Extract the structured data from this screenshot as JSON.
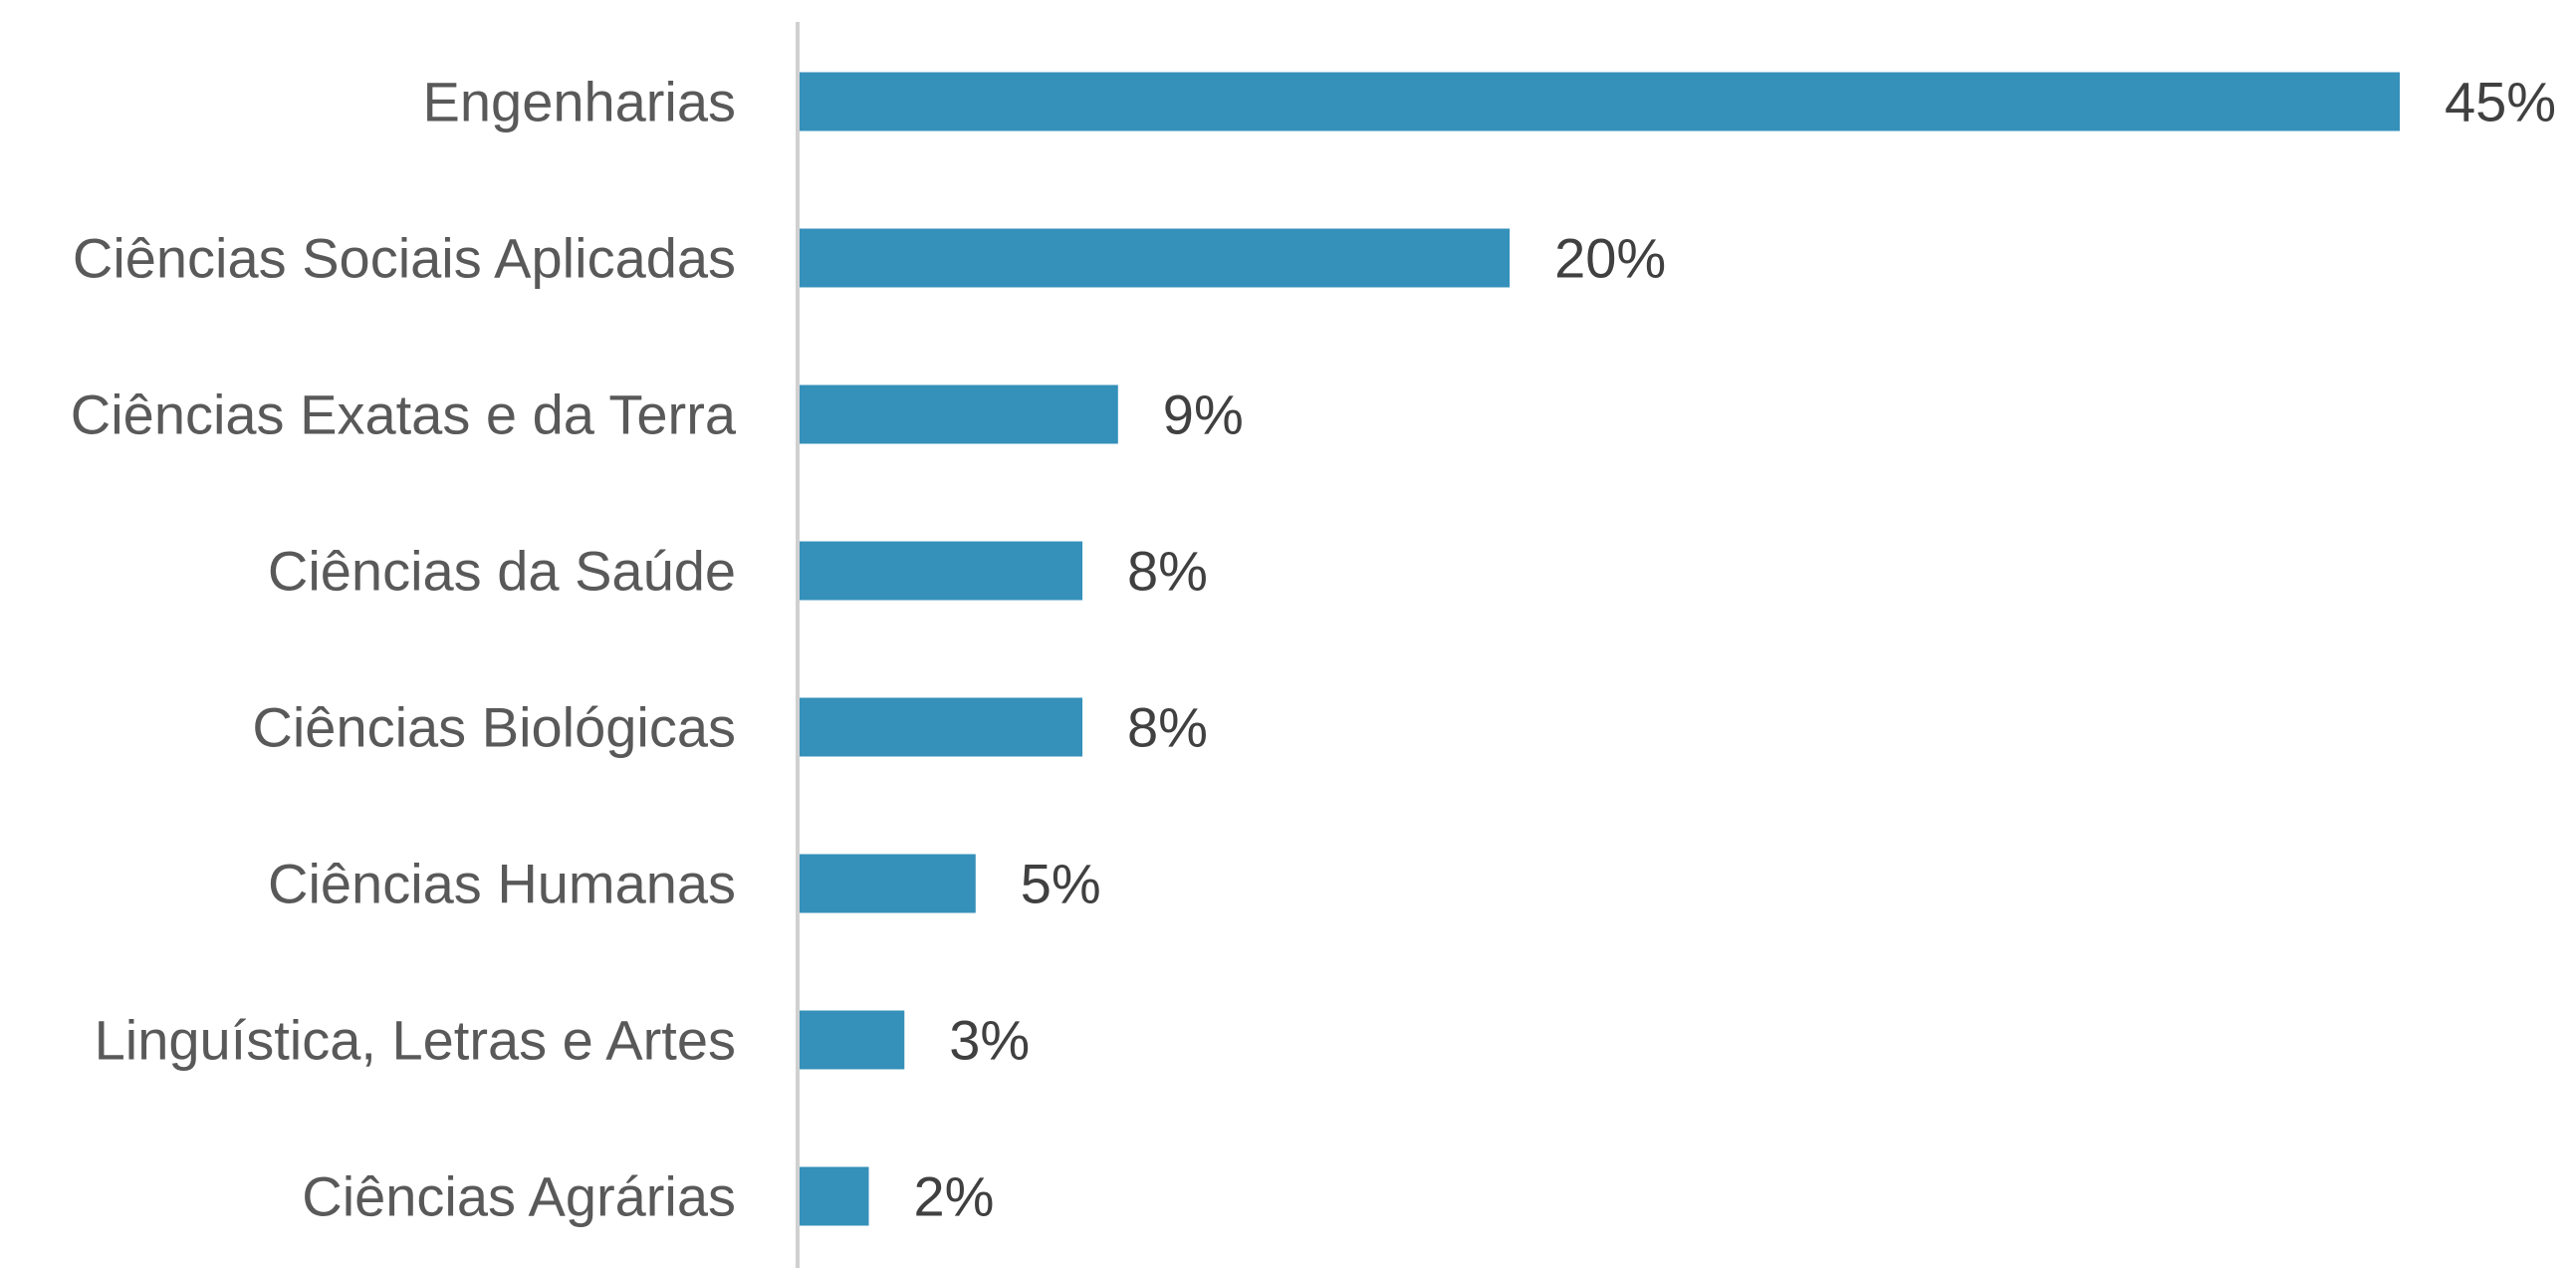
{
  "chart_data": {
    "type": "bar",
    "orientation": "horizontal",
    "categories": [
      "Engenharias",
      "Ciências Sociais Aplicadas",
      "Ciências Exatas e da Terra",
      "Ciências da Saúde",
      "Ciências Biológicas",
      "Ciências Humanas",
      "Linguística, Letras e Artes",
      "Ciências Agrárias"
    ],
    "values": [
      45,
      20,
      9,
      8,
      8,
      5,
      3,
      2
    ],
    "data_labels": [
      "45%",
      "20%",
      "9%",
      "8%",
      "8%",
      "5%",
      "3%",
      "2%"
    ],
    "unit": "%",
    "xlim": [
      0,
      45
    ],
    "grid": false,
    "legend": "none",
    "bar_color": "#3590BA",
    "axis_color": "#D0D0D0"
  }
}
